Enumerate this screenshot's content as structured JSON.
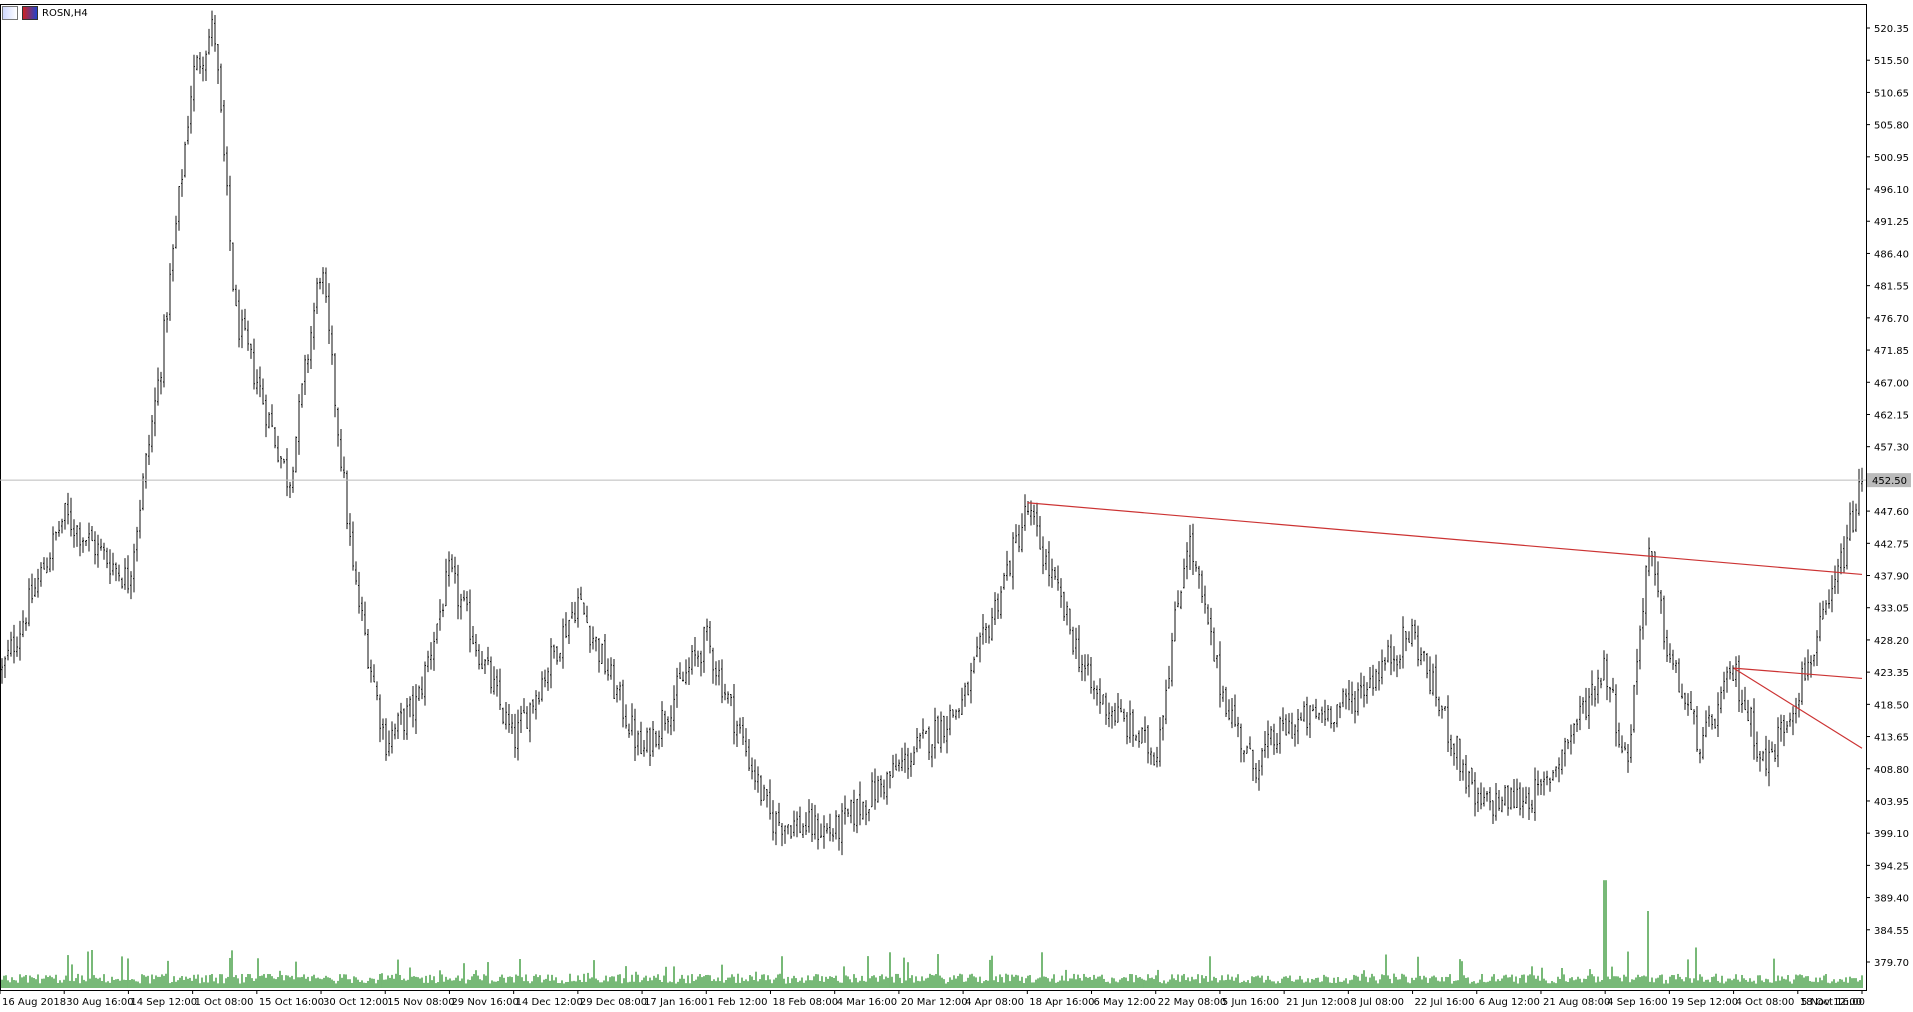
{
  "header": {
    "symbol_label": "ROSN,H4"
  },
  "chart_data": {
    "type": "ohlc",
    "symbol": "ROSN",
    "timeframe": "H4",
    "ylim": [
      379.7,
      525.2
    ],
    "y_ticks": [
      "520.35",
      "515.50",
      "510.65",
      "505.80",
      "500.95",
      "496.10",
      "491.25",
      "486.40",
      "481.55",
      "476.70",
      "471.85",
      "467.00",
      "462.15",
      "457.30",
      "452.50",
      "447.60",
      "442.75",
      "437.90",
      "433.05",
      "428.20",
      "423.35",
      "418.50",
      "413.65",
      "408.80",
      "403.95",
      "399.10",
      "394.25",
      "389.40",
      "384.55",
      "379.70"
    ],
    "x_ticks": [
      "16 Aug 2018",
      "30 Aug 16:00",
      "14 Sep 12:00",
      "1 Oct 08:00",
      "15 Oct 16:00",
      "30 Oct 12:00",
      "15 Nov 08:00",
      "29 Nov 16:00",
      "14 Dec 12:00",
      "29 Dec 08:00",
      "17 Jan 16:00",
      "1 Feb 12:00",
      "18 Feb 08:00",
      "4 Mar 16:00",
      "20 Mar 12:00",
      "4 Apr 08:00",
      "18 Apr 16:00",
      "6 May 12:00",
      "22 May 08:00",
      "5 Jun 16:00",
      "21 Jun 12:00",
      "8 Jul 08:00",
      "22 Jul 16:00",
      "6 Aug 12:00",
      "21 Aug 08:00",
      "4 Sep 16:00",
      "19 Sep 12:00",
      "4 Oct 08:00",
      "18 Oct 16:00",
      "5 Nov 12:00"
    ],
    "current_price": 452.5,
    "current_price_label": "452.50",
    "anchors": [
      {
        "t": "16 Aug 2018",
        "p": 422
      },
      {
        "t": "30 Aug 16:00",
        "p": 447
      },
      {
        "t": "14 Sep 12:00",
        "p": 437
      },
      {
        "t": "21 Sep",
        "p": 470
      },
      {
        "t": "1 Oct 08:00",
        "p": 515
      },
      {
        "t": "4 Oct",
        "p": 523
      },
      {
        "t": "9 Oct",
        "p": 478
      },
      {
        "t": "15 Oct 16:00",
        "p": 468
      },
      {
        "t": "24 Oct",
        "p": 452
      },
      {
        "t": "30 Oct 12:00",
        "p": 486
      },
      {
        "t": "6 Nov",
        "p": 438
      },
      {
        "t": "15 Nov 08:00",
        "p": 412
      },
      {
        "t": "20 Nov",
        "p": 418
      },
      {
        "t": "29 Nov 16:00",
        "p": 438
      },
      {
        "t": "14 Dec 12:00",
        "p": 412
      },
      {
        "t": "29 Dec 08:00",
        "p": 434
      },
      {
        "t": "17 Jan 16:00",
        "p": 410
      },
      {
        "t": "1 Feb 12:00",
        "p": 428
      },
      {
        "t": "18 Feb 08:00",
        "p": 400
      },
      {
        "t": "4 Mar 16:00",
        "p": 398
      },
      {
        "t": "20 Mar 12:00",
        "p": 408
      },
      {
        "t": "4 Apr 08:00",
        "p": 418
      },
      {
        "t": "18 Apr 16:00",
        "p": 448
      },
      {
        "t": "6 May 12:00",
        "p": 420
      },
      {
        "t": "22 May 08:00",
        "p": 410
      },
      {
        "t": "27 May",
        "p": 444
      },
      {
        "t": "5 Jun 16:00",
        "p": 421
      },
      {
        "t": "10 Jun",
        "p": 408
      },
      {
        "t": "21 Jun 12:00",
        "p": 414
      },
      {
        "t": "8 Jul 08:00",
        "p": 418
      },
      {
        "t": "22 Jul 16:00",
        "p": 429
      },
      {
        "t": "6 Aug 12:00",
        "p": 402
      },
      {
        "t": "21 Aug 08:00",
        "p": 404
      },
      {
        "t": "4 Sep 16:00",
        "p": 424
      },
      {
        "t": "10 Sep",
        "p": 408
      },
      {
        "t": "13 Sep",
        "p": 442
      },
      {
        "t": "19 Sep 12:00",
        "p": 425
      },
      {
        "t": "30 Sep",
        "p": 411
      },
      {
        "t": "4 Oct 08:00",
        "p": 423
      },
      {
        "t": "9 Oct",
        "p": 408
      },
      {
        "t": "18 Oct 16:00",
        "p": 420
      },
      {
        "t": "1 Nov",
        "p": 433
      },
      {
        "t": "5 Nov 12:00",
        "p": 452
      }
    ],
    "trendlines": [
      {
        "from": {
          "t": "18 Apr 16:00",
          "p": 449.0
        },
        "to": {
          "t": "5 Nov 12:00",
          "p": 437.9
        },
        "color": "#cc3333"
      },
      {
        "from": {
          "t": "4 Oct 08:00",
          "p": 423.4
        },
        "to": {
          "t": "5 Nov 12:00",
          "p": 421.8
        },
        "color": "#cc3333"
      },
      {
        "from": {
          "t": "4 Oct 08:00",
          "p": 423.4
        },
        "to": {
          "t": "5 Nov 12:00",
          "p": 411.0
        },
        "color": "#cc3333"
      }
    ],
    "volume_color": "#3d9b3d",
    "volume_notable": [
      {
        "t": "4 Sep 16:00",
        "v": 0.98
      },
      {
        "t": "13 Sep",
        "v": 0.7
      }
    ],
    "colors": {
      "bar": "#111111",
      "trendline": "#cc3333",
      "price_line": "#bbbbbb",
      "volume": "#3d9b3d",
      "axis": "#000000"
    }
  }
}
